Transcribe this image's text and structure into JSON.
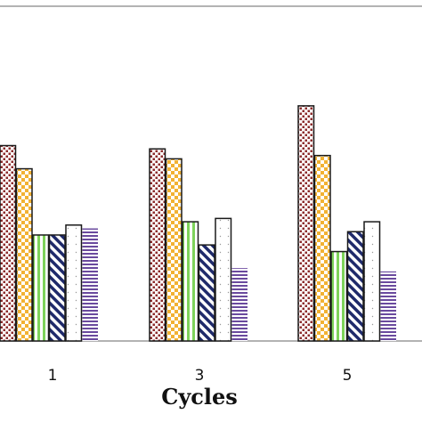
{
  "chart_data": {
    "type": "bar",
    "title": "",
    "xlabel": "Cycles",
    "ylabel": "",
    "categories": [
      "1",
      "3",
      "5"
    ],
    "ylim": [
      0,
      100
    ],
    "grid": false,
    "legend": "none",
    "series": [
      {
        "values": [
          59,
          58,
          71
        ],
        "pattern": "dots",
        "color": "#8b2a2a"
      },
      {
        "values": [
          52,
          55,
          56
        ],
        "pattern": "checker",
        "color": "#f2b233"
      },
      {
        "values": [
          32,
          36,
          27
        ],
        "pattern": "vertical",
        "color": "#7ed35a"
      },
      {
        "values": [
          32,
          29,
          33
        ],
        "pattern": "diagonal",
        "color": "#1f2a6b"
      },
      {
        "values": [
          35,
          37,
          36
        ],
        "pattern": "sparse-dots",
        "color": "#9a9a9a"
      },
      {
        "values": [
          34,
          22,
          21
        ],
        "pattern": "horizontal",
        "color": "#6a4a9e"
      }
    ]
  }
}
